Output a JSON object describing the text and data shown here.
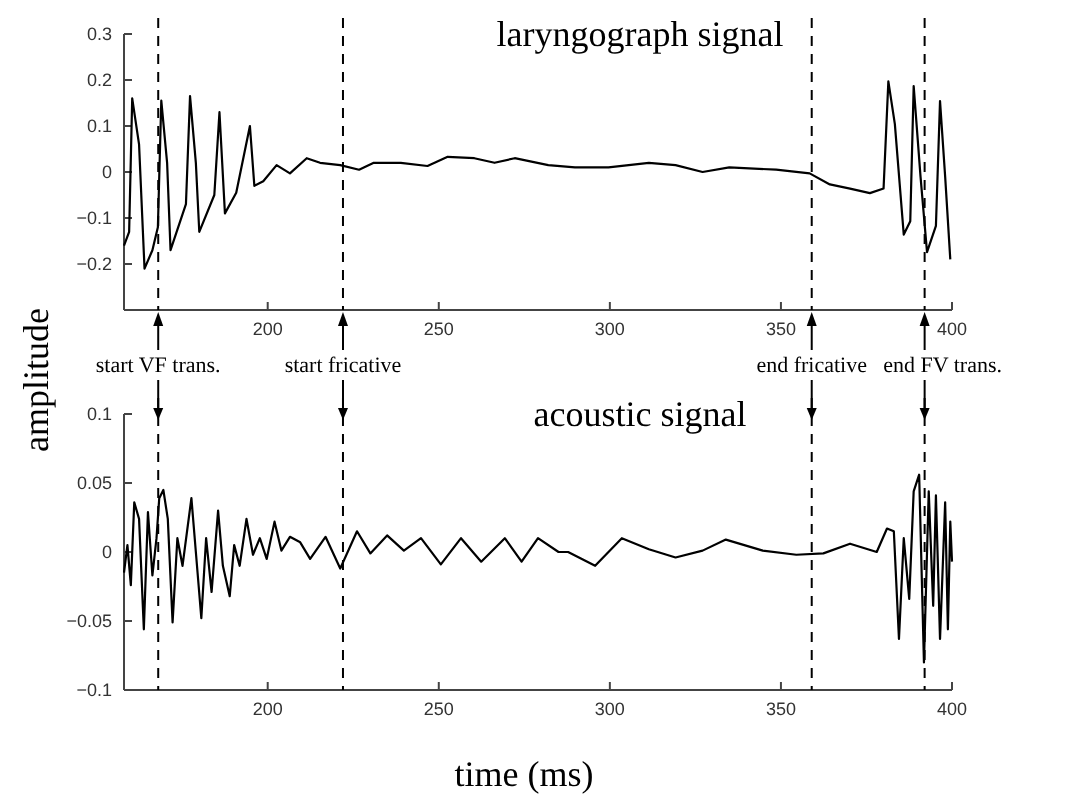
{
  "chart_data": [
    {
      "type": "line",
      "title": "laryngograph signal",
      "ylabel": "amplitude",
      "xlim": [
        158,
        400
      ],
      "xticks": [
        200,
        250,
        300,
        350,
        400
      ],
      "ylim": [
        -0.3,
        0.3
      ],
      "yticks": [
        -0.2,
        -0.1,
        0,
        0.1,
        0.2,
        0.3
      ],
      "ref_lines": [
        {
          "axis": "x",
          "value": 168,
          "line_style": "dashed"
        },
        {
          "axis": "x",
          "value": 222,
          "line_style": "dashed"
        },
        {
          "axis": "x",
          "value": 359,
          "line_style": "dashed"
        },
        {
          "axis": "x",
          "value": 392,
          "line_style": "dashed"
        }
      ],
      "series": [
        {
          "color": "#000000",
          "x": [
            158,
            159.5,
            160.4,
            162.4,
            164,
            166.3,
            167.9,
            168.9,
            170.6,
            171.6,
            176.1,
            177.3,
            179,
            180,
            184.4,
            185.9,
            187.5,
            190.8,
            194.8,
            196.1,
            198.7,
            202.6,
            206.5,
            211.4,
            215.3,
            221.2,
            226.7,
            231,
            238.9,
            246.7,
            252.6,
            260.4,
            266.3,
            272.2,
            282,
            289.8,
            299.6,
            311.4,
            319.2,
            327.1,
            334.9,
            348.6,
            358.4,
            364.3,
            370.2,
            376,
            380,
            381.4,
            383.3,
            385.9,
            387.8,
            388.8,
            390.8,
            392.7,
            395.3,
            396.5,
            398,
            399.5
          ],
          "values": [
            -0.16,
            -0.13,
            0.16,
            0.06,
            -0.21,
            -0.17,
            -0.12,
            0.155,
            0.02,
            -0.17,
            -0.07,
            0.165,
            0.02,
            -0.13,
            -0.05,
            0.13,
            -0.09,
            -0.045,
            0.1,
            -0.03,
            -0.02,
            0.015,
            -0.003,
            0.03,
            0.02,
            0.015,
            0.005,
            0.02,
            0.02,
            0.013,
            0.033,
            0.03,
            0.02,
            0.03,
            0.015,
            0.01,
            0.01,
            0.02,
            0.015,
            0,
            0.01,
            0.005,
            -0.003,
            -0.027,
            -0.036,
            -0.046,
            -0.036,
            0.197,
            0.104,
            -0.136,
            -0.107,
            0.187,
            -0.01,
            -0.174,
            -0.117,
            0.154,
            -0.01,
            -0.19
          ]
        }
      ]
    },
    {
      "type": "line",
      "title": "acoustic signal",
      "xlabel": "time (ms)",
      "xlim": [
        158,
        400
      ],
      "xticks": [
        200,
        250,
        300,
        350,
        400
      ],
      "ylim": [
        -0.1,
        0.1
      ],
      "yticks": [
        -0.1,
        -0.05,
        0,
        0.05,
        0.1
      ],
      "ref_lines": [
        {
          "axis": "x",
          "value": 168,
          "label": "start VF trans.",
          "line_style": "dashed"
        },
        {
          "axis": "x",
          "value": 222,
          "label": "start fricative",
          "line_style": "dashed"
        },
        {
          "axis": "x",
          "value": 359,
          "label": "end fricative",
          "line_style": "dashed"
        },
        {
          "axis": "x",
          "value": 392,
          "label": "end FV trans.",
          "line_style": "dashed"
        }
      ],
      "series": [
        {
          "color": "#000000",
          "x": [
            158,
            159,
            160,
            161,
            162.4,
            163.8,
            165,
            166.3,
            167.5,
            168.3,
            169.5,
            170.8,
            172.2,
            173.6,
            175.1,
            177.7,
            179,
            180.6,
            182,
            183.6,
            185.5,
            186.9,
            188.9,
            190.2,
            191.8,
            193.8,
            195.7,
            197.7,
            199.7,
            202,
            204,
            206.5,
            209.5,
            212.4,
            216.9,
            221.2,
            226.1,
            230,
            234.9,
            239.8,
            244.8,
            250.6,
            256.5,
            262.4,
            269.3,
            274.2,
            279,
            285,
            287.8,
            295.7,
            303.5,
            311.4,
            319.2,
            327.1,
            333.9,
            344.7,
            354.5,
            362.4,
            370.2,
            378,
            381,
            383,
            384.5,
            385.9,
            387.5,
            388.8,
            390.4,
            391.8,
            393.2,
            394.5,
            395.3,
            396.5,
            398,
            398.8,
            399.5,
            400
          ],
          "values": [
            -0.015,
            0.005,
            -0.024,
            0.036,
            0.024,
            -0.056,
            0.029,
            -0.017,
            0.01,
            0.039,
            0.045,
            0.024,
            -0.051,
            0.01,
            -0.01,
            0.039,
            0,
            -0.048,
            0.01,
            -0.029,
            0.03,
            -0.01,
            -0.032,
            0.005,
            -0.01,
            0.024,
            -0.002,
            0.01,
            -0.005,
            0.022,
            0.001,
            0.011,
            0.007,
            -0.005,
            0.011,
            -0.012,
            0.015,
            -0.001,
            0.012,
            0.001,
            0.01,
            -0.009,
            0.01,
            -0.007,
            0.01,
            -0.007,
            0.01,
            0,
            0,
            -0.01,
            0.01,
            0.002,
            -0.004,
            0.001,
            0.009,
            0.001,
            -0.002,
            -0.001,
            0.006,
            0,
            0.017,
            0.015,
            -0.063,
            0.01,
            -0.034,
            0.044,
            0.056,
            -0.08,
            0.044,
            -0.039,
            0.041,
            -0.063,
            0.036,
            -0.056,
            0.022,
            -0.007
          ]
        }
      ]
    }
  ]
}
